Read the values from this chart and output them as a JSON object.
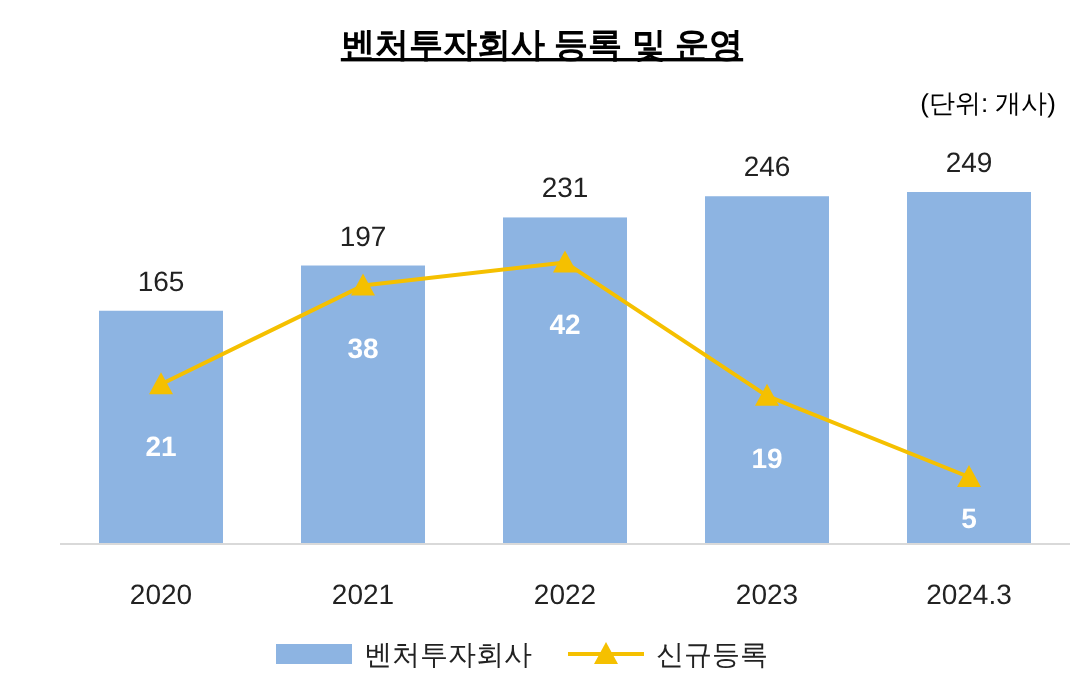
{
  "chart_data": {
    "type": "bar",
    "title": "벤처투자회사 등록 및 운영",
    "annotations": [
      "(단위: 개사)"
    ],
    "categories": [
      "2020",
      "2021",
      "2022",
      "2023",
      "2024.3"
    ],
    "series": [
      {
        "name": "벤처투자회사",
        "color": "#8db4e2",
        "values": [
          165,
          197,
          231,
          246,
          249
        ]
      },
      {
        "name": "신규등록",
        "type": "line",
        "axis": "y2",
        "color": "#f5c000",
        "marker": "triangle",
        "values": [
          21,
          38,
          42,
          19,
          5
        ]
      }
    ],
    "data_labels": true,
    "legend": "bottom"
  }
}
